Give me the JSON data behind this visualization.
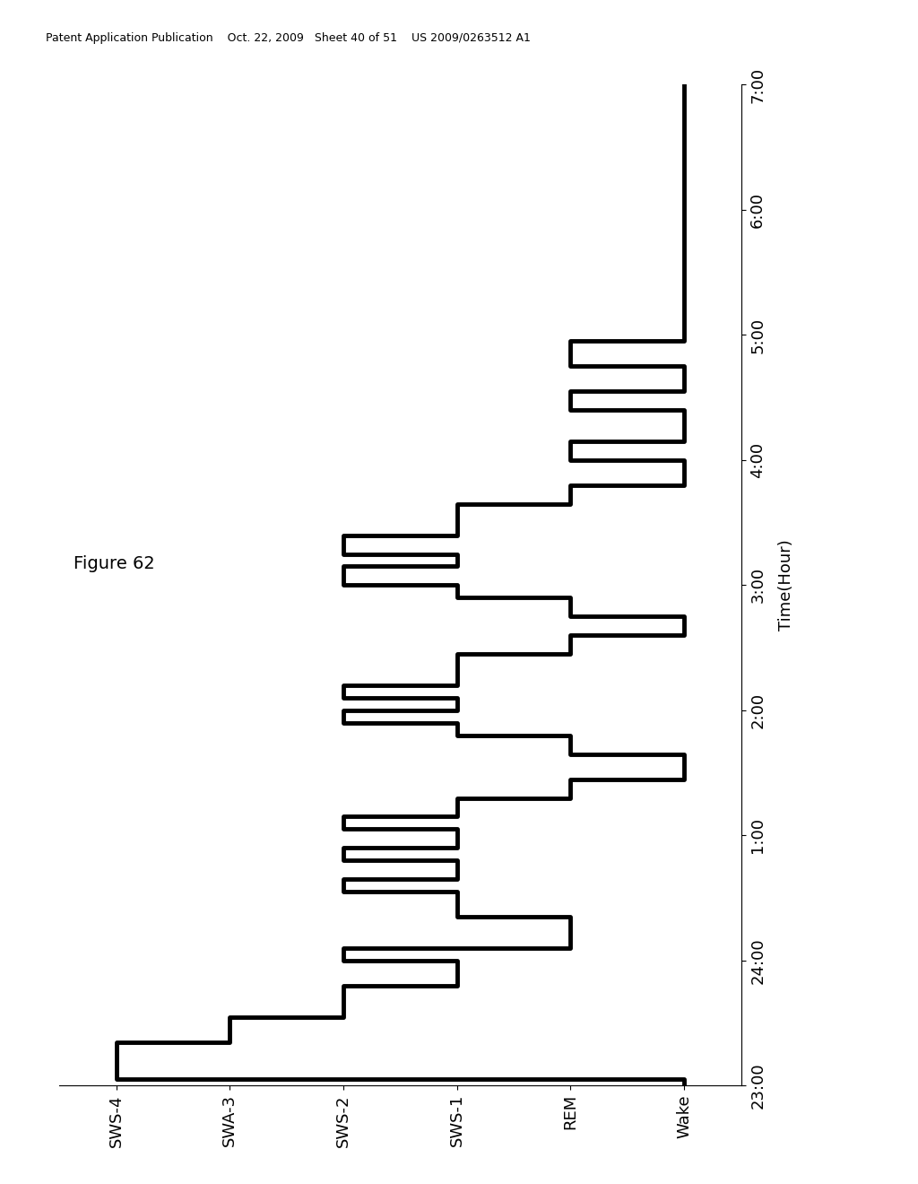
{
  "title": "Figure 62",
  "ylabel": "Time(Hour)",
  "y_labels": [
    "23:00",
    "24:00",
    "1:00",
    "2:00",
    "3:00",
    "4:00",
    "5:00",
    "6:00",
    "7:00"
  ],
  "y_values": [
    0,
    1,
    2,
    3,
    4,
    5,
    6,
    7,
    8
  ],
  "x_labels": [
    "Wake",
    "REM",
    "SWS-1",
    "SWS-2",
    "SWA-3",
    "SWS-4"
  ],
  "x_values": [
    5,
    4,
    3,
    2,
    1,
    0
  ],
  "y_min": 0,
  "y_max": 8,
  "x_min": -0.5,
  "x_max": 5.5,
  "line_color": "#000000",
  "line_width": 3.5,
  "background_color": "#ffffff",
  "steps": [
    [
      5,
      0.0
    ],
    [
      0,
      0.05
    ],
    [
      0,
      0.3
    ],
    [
      1,
      0.35
    ],
    [
      1,
      0.5
    ],
    [
      2,
      0.55
    ],
    [
      2,
      0.75
    ],
    [
      3,
      0.8
    ],
    [
      3,
      0.95
    ],
    [
      2,
      1.0
    ],
    [
      2,
      1.05
    ],
    [
      4,
      1.1
    ],
    [
      4,
      1.3
    ],
    [
      3,
      1.35
    ],
    [
      3,
      1.5
    ],
    [
      2,
      1.55
    ],
    [
      2,
      1.6
    ],
    [
      3,
      1.65
    ],
    [
      3,
      1.75
    ],
    [
      2,
      1.8
    ],
    [
      2,
      1.85
    ],
    [
      3,
      1.9
    ],
    [
      3,
      2.0
    ],
    [
      2,
      2.05
    ],
    [
      2,
      2.1
    ],
    [
      3,
      2.15
    ],
    [
      3,
      2.25
    ],
    [
      4,
      2.3
    ],
    [
      4,
      2.4
    ],
    [
      5,
      2.45
    ],
    [
      5,
      2.6
    ],
    [
      4,
      2.65
    ],
    [
      4,
      2.75
    ],
    [
      3,
      2.8
    ],
    [
      3,
      2.85
    ],
    [
      2,
      2.9
    ],
    [
      2,
      2.95
    ],
    [
      3,
      3.0
    ],
    [
      3,
      3.05
    ],
    [
      2,
      3.1
    ],
    [
      2,
      3.15
    ],
    [
      3,
      3.2
    ],
    [
      3,
      3.4
    ],
    [
      4,
      3.45
    ],
    [
      4,
      3.55
    ],
    [
      5,
      3.6
    ],
    [
      5,
      3.7
    ],
    [
      4,
      3.75
    ],
    [
      4,
      3.85
    ],
    [
      3,
      3.9
    ],
    [
      3,
      3.95
    ],
    [
      2,
      4.0
    ],
    [
      2,
      4.1
    ],
    [
      3,
      4.15
    ],
    [
      3,
      4.2
    ],
    [
      2,
      4.25
    ],
    [
      2,
      4.35
    ],
    [
      3,
      4.4
    ],
    [
      3,
      4.6
    ],
    [
      4,
      4.65
    ],
    [
      4,
      4.75
    ],
    [
      5,
      4.8
    ],
    [
      5,
      4.95
    ],
    [
      4,
      5.0
    ],
    [
      4,
      5.1
    ],
    [
      5,
      5.15
    ],
    [
      5,
      5.35
    ],
    [
      4,
      5.4
    ],
    [
      4,
      5.5
    ],
    [
      5,
      5.55
    ],
    [
      5,
      5.7
    ],
    [
      4,
      5.75
    ],
    [
      4,
      5.9
    ],
    [
      5,
      5.95
    ],
    [
      5,
      8.0
    ]
  ],
  "header_text": "Patent Application Publication    Oct. 22, 2009   Sheet 40 of 51    US 2009/0263512 A1"
}
